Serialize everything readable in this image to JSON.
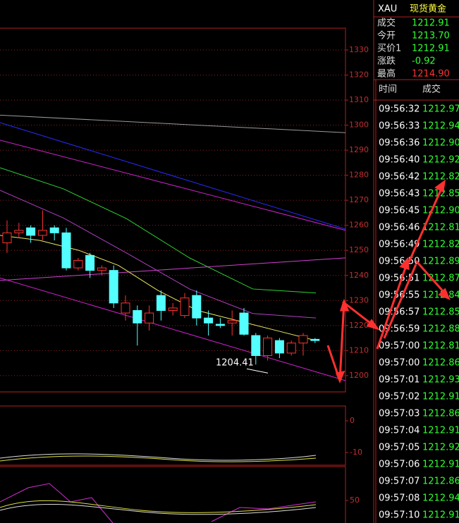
{
  "chart": {
    "ylim": [
      1193.5,
      1338.7
    ],
    "yticks": [
      1200,
      1210,
      1220,
      1230,
      1240,
      1250,
      1260,
      1270,
      1280,
      1290,
      1300,
      1310,
      1320,
      1330
    ],
    "candles": [
      {
        "open": 1253,
        "high": 1262,
        "low": 1249,
        "close": 1257
      },
      {
        "open": 1257,
        "high": 1261,
        "low": 1255,
        "close": 1258
      },
      {
        "open": 1259,
        "high": 1260,
        "low": 1253,
        "close": 1256
      },
      {
        "open": 1256,
        "high": 1266,
        "low": 1254,
        "close": 1258
      },
      {
        "open": 1259,
        "high": 1260,
        "low": 1254,
        "close": 1257
      },
      {
        "open": 1257,
        "high": 1259,
        "low": 1242,
        "close": 1243
      },
      {
        "open": 1243,
        "high": 1247,
        "low": 1242,
        "close": 1246
      },
      {
        "open": 1248,
        "high": 1249,
        "low": 1239,
        "close": 1242
      },
      {
        "open": 1242,
        "high": 1244,
        "low": 1240,
        "close": 1243
      },
      {
        "open": 1242,
        "high": 1244,
        "low": 1227,
        "close": 1229
      },
      {
        "open": 1225,
        "high": 1232,
        "low": 1222,
        "close": 1229
      },
      {
        "open": 1226,
        "high": 1228,
        "low": 1212,
        "close": 1221
      },
      {
        "open": 1221,
        "high": 1228,
        "low": 1218,
        "close": 1225
      },
      {
        "open": 1232,
        "high": 1234,
        "low": 1222,
        "close": 1226
      },
      {
        "open": 1226,
        "high": 1229,
        "low": 1224,
        "close": 1227
      },
      {
        "open": 1224,
        "high": 1233,
        "low": 1223,
        "close": 1231
      },
      {
        "open": 1232,
        "high": 1234,
        "low": 1220,
        "close": 1223
      },
      {
        "open": 1223,
        "high": 1226,
        "low": 1216,
        "close": 1221
      },
      {
        "open": 1220.5,
        "high": 1223,
        "low": 1219,
        "close": 1220
      },
      {
        "open": 1221,
        "high": 1226,
        "low": 1216,
        "close": 1222
      },
      {
        "open": 1225,
        "high": 1227,
        "low": 1216,
        "close": 1216.5
      },
      {
        "open": 1216,
        "high": 1217,
        "low": 1204.41,
        "close": 1208
      },
      {
        "open": 1208,
        "high": 1216,
        "low": 1206,
        "close": 1215
      },
      {
        "open": 1214,
        "high": 1215,
        "low": 1207,
        "close": 1209
      },
      {
        "open": 1209,
        "high": 1214,
        "low": 1208,
        "close": 1213
      },
      {
        "open": 1213,
        "high": 1217,
        "low": 1208,
        "close": 1216
      },
      {
        "open": 1214.5,
        "high": 1215,
        "low": 1213,
        "close": 1214
      }
    ],
    "lines": [
      {
        "color": "#9a9a9a",
        "values": [
          1304,
          1297
        ]
      },
      {
        "color": "#2a2aff",
        "values": [
          1301,
          1258.5
        ]
      },
      {
        "color": "#d020d0",
        "values": [
          1294,
          1258
        ]
      },
      {
        "color": "#d040d0",
        "values": [
          1238,
          1247
        ]
      },
      {
        "color": "#d020d0",
        "values": [
          1239,
          1198
        ]
      },
      {
        "color": "#30d030",
        "values": [
          1283,
          1274.6,
          1262.7,
          1247,
          1234.6,
          1233
        ]
      },
      {
        "color": "#b040c0",
        "values": [
          1274,
          1263,
          1249,
          1234.6,
          1224.8,
          1223
        ]
      },
      {
        "color": "#e8e860",
        "values": [
          1256,
          1254,
          1250,
          1244,
          1234,
          1226,
          1222,
          1218,
          1214
        ]
      }
    ],
    "low_label": "1204.41",
    "sub_ticks": [
      "0",
      "-10",
      "50"
    ]
  },
  "quote": {
    "symbol": "XAU",
    "name": "现货黄金",
    "rows": [
      [
        "成交",
        "1212.91"
      ],
      [
        "今开",
        "1213.70"
      ],
      [
        "买价1",
        "1212.91"
      ],
      [
        "涨跌",
        "-0.92"
      ],
      [
        "最高",
        "1214.90"
      ]
    ]
  },
  "ticks": {
    "header": [
      "时间",
      "成交"
    ],
    "rows": [
      [
        "09:56:32",
        "1212.97"
      ],
      [
        "09:56:33",
        "1212.94"
      ],
      [
        "09:56:36",
        "1212.90"
      ],
      [
        "09:56:40",
        "1212.92"
      ],
      [
        "09:56:42",
        "1212.82"
      ],
      [
        "09:56:43",
        "1212.85"
      ],
      [
        "09:56:45",
        "1212.90"
      ],
      [
        "09:56:46",
        "1212.81"
      ],
      [
        "09:56:49",
        "1212.82"
      ],
      [
        "09:56:50",
        "1212.89"
      ],
      [
        "09:56:51",
        "1212.87"
      ],
      [
        "09:56:55",
        "1212.84"
      ],
      [
        "09:56:57",
        "1212.85"
      ],
      [
        "09:56:59",
        "1212.88"
      ],
      [
        "09:57:00",
        "1212.81"
      ],
      [
        "09:57:00",
        "1212.86"
      ],
      [
        "09:57:01",
        "1212.93"
      ],
      [
        "09:57:02",
        "1212.91"
      ],
      [
        "09:57:03",
        "1212.86"
      ],
      [
        "09:57:04",
        "1212.91"
      ],
      [
        "09:57:05",
        "1212.92"
      ],
      [
        "09:57:06",
        "1212.91"
      ],
      [
        "09:57:07",
        "1212.86"
      ],
      [
        "09:57:08",
        "1212.94"
      ],
      [
        "09:57:10",
        "1212.91"
      ]
    ]
  }
}
